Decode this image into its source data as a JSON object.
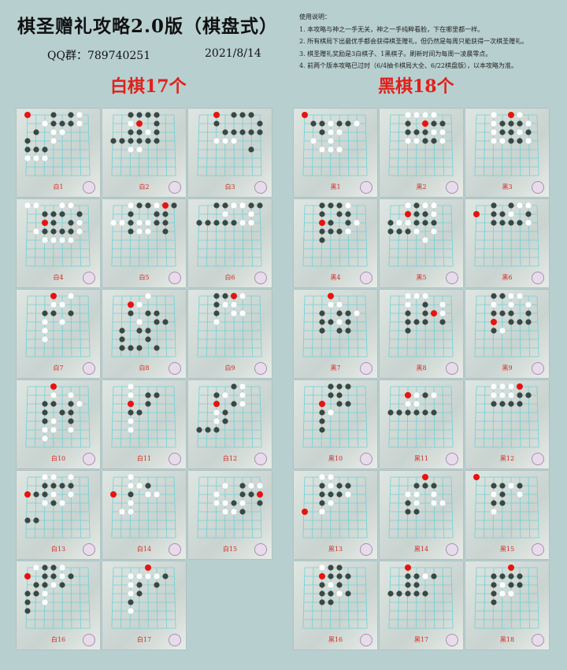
{
  "header": {
    "title": "棋圣赠礼攻略2.0版（棋盘式）",
    "qq": "QQ群：789740251",
    "date": "2021/8/14"
  },
  "notes": [
    "使用说明：",
    "1. 本攻略与神之一手无关，神之一手纯粹看脸，下在哪里都一样。",
    "2. 所有棋局下出最优手都会获得棋圣赠礼，但仍然是每周只能获得一次棋圣赠礼。",
    "3. 棋圣赠礼奖励是3白棋子、1黑棋子。刷新时间为每周一凌晨零点。",
    "4. 前两个版本攻略已过时（6/4抽卡棋局大全、6/22棋盘版），以本攻略为准。"
  ],
  "white": {
    "title": "白棋17个",
    "boards": [
      {
        "label": "白1",
        "stones": [
          "r..b.bw.",
          "..wbbbw.",
          ".b.ww...",
          "b..w....",
          "bbb.....",
          "www.....",
          "........",
          "........"
        ]
      },
      {
        "label": "白2",
        "stones": [
          "..bbbb..",
          "..wr.b..",
          "..bbwb..",
          "bbbbbb..",
          "..ww....",
          "........",
          "........",
          "........"
        ]
      },
      {
        "label": "白3",
        "stones": [
          "..r.bbb.",
          "..b....b",
          "...bbbbb",
          "..www...",
          "......b.",
          "........",
          "........",
          "........"
        ]
      },
      {
        "label": "白4",
        "stones": [
          "ww..ww..",
          "..bbb.b.",
          "..rb.bw.",
          ".wbbbbw.",
          "..wwww..",
          "........",
          "........",
          "........"
        ]
      },
      {
        "label": "白5",
        "stones": [
          "..wbbwrb",
          "..b..bb.",
          "wwbwwbb.",
          "..bww.b.",
          "........",
          "........",
          "........",
          "........"
        ]
      },
      {
        "label": "白6",
        "stones": [
          "..bbwwbb",
          "...w..w.",
          "bbbbbww.",
          "........",
          "........",
          "........",
          "........",
          "........"
        ]
      },
      {
        "label": "白7",
        "stones": [
          "...r.w..",
          "...ww...",
          "..bb.b..",
          "..w.w...",
          "..w.....",
          "..w.....",
          "........",
          "........"
        ]
      },
      {
        "label": "白8",
        "stones": [
          "....w...",
          "..rw....",
          "..b.bb..",
          "...w.bb.",
          ".b.bb...",
          ".b..b...",
          ".bbb.b..",
          "........"
        ]
      },
      {
        "label": "白9",
        "stones": [
          "..bbrw..",
          "..bww...",
          "..b.ww..",
          "..w.....",
          "........",
          "........",
          "........",
          "........"
        ]
      },
      {
        "label": "白10",
        "stones": [
          "...r....",
          "...w.w..",
          "..bb.bw.",
          "..b.bb..",
          "..bw.b..",
          "..ww.w..",
          "..w.....",
          "........"
        ]
      },
      {
        "label": "白11",
        "stones": [
          "..w.....",
          "..w.bb..",
          "..r.b...",
          "..bb....",
          "..w.....",
          "..w.....",
          "........",
          "........"
        ]
      },
      {
        "label": "白12",
        "stones": [
          "....bw..",
          "..bw.w..",
          "..r.bw..",
          "..wb....",
          "..wb....",
          "bbb.....",
          "........",
          "........"
        ]
      },
      {
        "label": "白13",
        "stones": [
          "..ww.w..",
          "..bbbb..",
          "rbbw.w..",
          "..wbw...",
          "........",
          "bb......",
          "........",
          "........"
        ]
      },
      {
        "label": "白14",
        "stones": [
          "..w.....",
          "..wwb...",
          "r.b.ww..",
          "..w.....",
          ".ww.....",
          "........",
          "........",
          "........"
        ]
      },
      {
        "label": "白15",
        "stones": [
          "........",
          "...w.bww",
          "..w..bbr",
          "..wwbw.b",
          "...wwb..",
          "........",
          "........",
          "........"
        ]
      },
      {
        "label": "白16",
        "stones": [
          ".wbbw...",
          "r.bbwb..",
          ".bbwb...",
          "bbw.....",
          "b.w.....",
          "b.......",
          "........",
          "........"
        ]
      },
      {
        "label": "白17",
        "stones": [
          "....r...",
          "..wwwwb.",
          "..wb.b..",
          "..wb....",
          "..b.....",
          "..w.....",
          "........",
          "........"
        ]
      }
    ]
  },
  "black": {
    "title": "黑棋18个",
    "boards": [
      {
        "label": "黑1",
        "stones": [
          "r.......",
          ".bbwbbw.",
          "..bww...",
          ".w.w....",
          "..www...",
          "........",
          "........",
          "........"
        ]
      },
      {
        "label": "黑2",
        "stones": [
          "..wwww..",
          "..b.rbb.",
          "..bbbww.",
          "..wwbbw.",
          "........",
          "........",
          "........",
          "........"
        ]
      },
      {
        "label": "黑3",
        "stones": [
          "..w.rw..",
          "..wbbbw.",
          "..wbbwb.",
          "..wwbbw.",
          "........",
          "........",
          "........",
          "........"
        ]
      },
      {
        "label": "黑4",
        "stones": [
          "..bbbw..",
          "..b.bb..",
          "..rb.bw.",
          "..bbbw..",
          "..b.....",
          "........",
          "........",
          "........"
        ]
      },
      {
        "label": "黑5",
        "stones": [
          "..wbww..",
          "..rbbw..",
          "bwwbbb..",
          "bbbw.w..",
          "....w...",
          "........",
          "........",
          "........"
        ]
      },
      {
        "label": "黑6",
        "stones": [
          "..b.bww.",
          "r.bbw.b.",
          "..bbbbw.",
          "........",
          "........",
          "........",
          "........",
          "........"
        ]
      },
      {
        "label": "黑7",
        "stones": [
          "...r....",
          "...ww...",
          "..b.bbw.",
          "..bbwb..",
          "..b.bb..",
          "........",
          "........",
          "........"
        ]
      },
      {
        "label": "黑8",
        "stones": [
          "..www...",
          "..w.b.w.",
          "..b.brw.",
          "..bbb.b.",
          "..b.....",
          "........",
          "........",
          "........"
        ]
      },
      {
        "label": "黑9",
        "stones": [
          "..bbww..",
          "..w.w.w.",
          "..bbb.b.",
          "..r.bbb.",
          "..bw....",
          "........",
          "........",
          "........"
        ]
      },
      {
        "label": "黑10",
        "stones": [
          "...bbb..",
          "...bb...",
          "..r.bb..",
          "..bw....",
          "..b.....",
          "..b.....",
          "........",
          "........"
        ]
      },
      {
        "label": "黑11",
        "stones": [
          "........",
          "..rwbw..",
          "..ww....",
          "bbbbbb..",
          "........",
          "........",
          "........",
          "........"
        ]
      },
      {
        "label": "黑12",
        "stones": [
          "..wwwr..",
          "..wwwbb.",
          "..bbbb..",
          "........",
          "........",
          "........",
          "........",
          "........"
        ]
      },
      {
        "label": "黑13",
        "stones": [
          "..ww....",
          "..bwbb..",
          "..bbbw..",
          "..bw....",
          "r.w.....",
          "........",
          "........",
          "........"
        ]
      },
      {
        "label": "黑14",
        "stones": [
          "....r...",
          "...bbb..",
          "..ww.w..",
          "..bw.ww.",
          "..bb....",
          "........",
          "........",
          "........"
        ]
      },
      {
        "label": "黑15",
        "stones": [
          "r.......",
          "..bbwb..",
          "..wb.w..",
          "..bb....",
          "..w.....",
          "........",
          "........",
          "........"
        ]
      },
      {
        "label": "黑16",
        "stones": [
          "..wbb...",
          "..rbbb..",
          "..bwb...",
          "..bbwb..",
          "..bb....",
          "........",
          "........",
          "........"
        ]
      },
      {
        "label": "黑17",
        "stones": [
          "..r.....",
          "..bbwb..",
          "..bb....",
          "bbbbb...",
          "........",
          "........",
          "........",
          "........"
        ]
      },
      {
        "label": "黑18",
        "stones": [
          "....r...",
          "..bbbb..",
          "..bwbb..",
          "..bww...",
          "..b.....",
          "........",
          "........",
          "........"
        ]
      }
    ]
  },
  "colors": {
    "red_stone": "#e8130f",
    "black_stone": "#3b4743",
    "white_stone": "#ffffff",
    "grid": "#6fd0d6",
    "label": "#d42a22"
  }
}
